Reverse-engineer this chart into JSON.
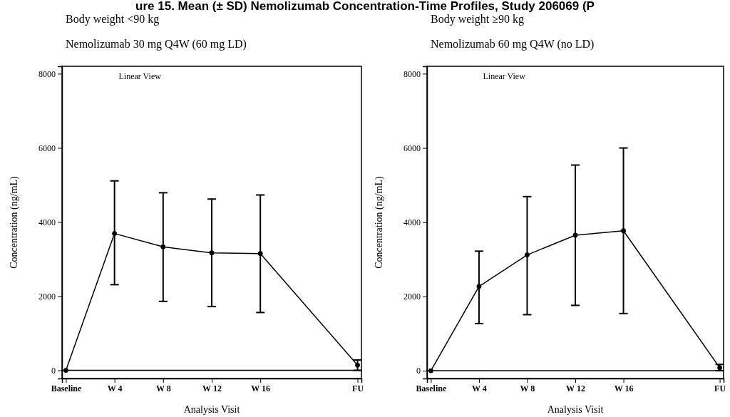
{
  "chart_data": [
    {
      "type": "line",
      "title": "Body weight <90 kg",
      "subtitle": "Nemolizumab 30 mg Q4W (60 mg LD)",
      "xlabel": "Analysis Visit",
      "ylabel": "Concentration (ng/mL)",
      "annotations": [
        "ure 15. Mean (± SD) Nemolizumab Concentration-Time Profiles, Study 206069 (P",
        "Linear View"
      ],
      "categories": [
        "Baseline",
        "W 4",
        "W 8",
        "W 12",
        "W 16",
        null,
        "FU"
      ],
      "series": [
        {
          "color": "#000000",
          "values": [
            0,
            3690,
            3330,
            3170,
            3150,
            null,
            140
          ],
          "errors": [
            null,
            [
              2310,
              5110
            ],
            [
              1860,
              4790
            ],
            [
              1720,
              4620
            ],
            [
              1560,
              4730
            ],
            null,
            [
              0,
              280
            ]
          ]
        }
      ],
      "ylim": [
        -220,
        8200
      ],
      "yticks": [
        0,
        2000,
        4000,
        6000,
        8000
      ],
      "ref_lines": [
        {
          "axis": "y",
          "value": 0
        }
      ],
      "marker": "circle",
      "line_style": "solid",
      "grid": false
    },
    {
      "type": "line",
      "title": "Body weight ≥90 kg",
      "subtitle": "Nemolizumab 60 mg Q4W (no LD)",
      "xlabel": "Analysis Visit",
      "ylabel": "Concentration (ng/mL)",
      "annotations": [
        "Linear View"
      ],
      "categories": [
        "Baseline",
        "W 4",
        "W 8",
        "W 12",
        "W 16",
        null,
        "FU"
      ],
      "series": [
        {
          "color": "#000000",
          "values": [
            0,
            2270,
            3120,
            3650,
            3770,
            null,
            80
          ],
          "errors": [
            null,
            [
              1270,
              3220
            ],
            [
              1510,
              4690
            ],
            [
              1760,
              5540
            ],
            [
              1540,
              6000
            ],
            null,
            [
              0,
              170
            ]
          ]
        }
      ],
      "ylim": [
        -210,
        8200
      ],
      "yticks": [
        0,
        2000,
        4000,
        6000,
        8000
      ],
      "ref_lines": [
        {
          "axis": "y",
          "value": 0
        }
      ],
      "marker": "circle",
      "line_style": "solid",
      "grid": false
    }
  ]
}
